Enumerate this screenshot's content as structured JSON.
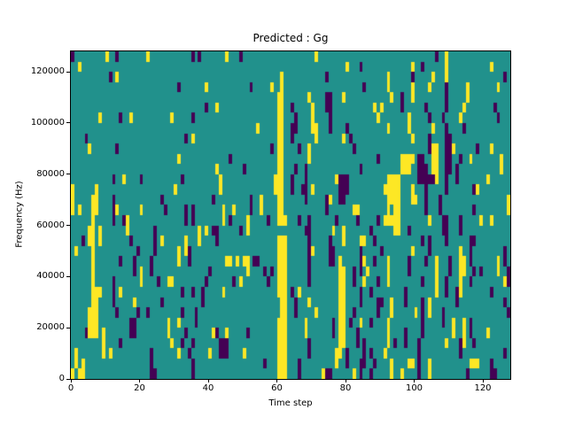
{
  "chart_data": {
    "type": "heatmap",
    "title": "Predicted : Gg",
    "xlabel": "Time step",
    "ylabel": "Frequency (Hz)",
    "x_range": [
      0,
      128
    ],
    "y_range": [
      0,
      128000
    ],
    "x_ticks": [
      0,
      20,
      40,
      60,
      80,
      100,
      120
    ],
    "y_ticks": [
      0,
      20000,
      40000,
      60000,
      80000,
      100000,
      120000
    ],
    "n_cols": 128,
    "n_rows": 32,
    "grid": "off",
    "legend": "none",
    "colormap": "viridis-3-level",
    "colors": {
      "mid_teal": "#21918c",
      "high_yellow": "#fde725",
      "low_purple": "#440154",
      "axes_background": "#ffffff",
      "text": "#000000"
    },
    "cell_freq_step_hz": 4000,
    "rows_top_to_bottom": [
      {
        "y": [
          10,
          22,
          45,
          71,
          109
        ],
        "p": [
          0,
          13,
          35,
          37,
          49,
          106
        ]
      },
      {
        "y": [
          2,
          80,
          99,
          109,
          122
        ],
        "p": [
          84,
          102
        ]
      },
      {
        "y": [
          13,
          61,
          92,
          105,
          109
        ],
        "p": [
          11,
          74,
          99,
          126
        ]
      },
      {
        "y": [
          39,
          58,
          61,
          92,
          99,
          104,
          115,
          124
        ],
        "p": [
          31,
          52,
          85,
          109
        ]
      },
      {
        "y": [
          60,
          61,
          69,
          79,
          93,
          99,
          115
        ],
        "p": [
          74,
          75,
          96,
          109
        ]
      },
      {
        "y": [
          42,
          60,
          61,
          70,
          88,
          90,
          114
        ],
        "p": [
          39,
          64,
          74,
          75,
          96,
          103,
          109,
          123
        ]
      },
      {
        "y": [
          8,
          17,
          29,
          60,
          61,
          70,
          89,
          98,
          113
        ],
        "p": [
          14,
          35,
          65,
          75,
          104,
          108,
          124
        ]
      },
      {
        "y": [
          54,
          60,
          61,
          70,
          71,
          92,
          98,
          105
        ],
        "p": [
          64,
          65,
          75,
          80,
          109,
          114
        ]
      },
      {
        "y": [
          35,
          60,
          61,
          71,
          79,
          99
        ],
        "p": [
          4,
          33,
          64,
          81,
          104,
          109,
          110
        ]
      },
      {
        "y": [
          5,
          60,
          61,
          69,
          105,
          106,
          111,
          122
        ],
        "p": [
          13,
          58,
          66,
          82,
          104,
          109,
          110,
          118
        ]
      },
      {
        "y": [
          31,
          60,
          61,
          69,
          96,
          97,
          98,
          99,
          105,
          106,
          116,
          125
        ],
        "p": [
          46,
          89,
          101,
          102,
          109,
          110,
          113
        ]
      },
      {
        "y": [
          42,
          60,
          61,
          96,
          97,
          98,
          105,
          106,
          125
        ],
        "p": [
          50,
          65,
          68,
          84,
          101,
          102,
          103,
          109,
          110,
          112
        ]
      },
      {
        "y": [
          15,
          43,
          59,
          60,
          61,
          77,
          92,
          93,
          94,
          95,
          106,
          121
        ],
        "p": [
          12,
          20,
          32,
          64,
          68,
          78,
          79,
          80,
          101,
          102,
          103,
          104,
          105,
          109,
          112
        ]
      },
      {
        "y": [
          0,
          7,
          30,
          43,
          59,
          60,
          61,
          70,
          91,
          92,
          93,
          94,
          95,
          99,
          118
        ],
        "p": [
          64,
          67,
          68,
          78,
          79,
          80,
          103,
          109,
          117
        ]
      },
      {
        "y": [
          0,
          6,
          7,
          55,
          60,
          61,
          75,
          92,
          93,
          94,
          95,
          99,
          100,
          127
        ],
        "p": [
          12,
          26,
          41,
          52,
          68,
          74,
          78,
          79,
          103,
          107
        ]
      },
      {
        "y": [
          0,
          2,
          6,
          7,
          13,
          20,
          44,
          47,
          55,
          60,
          61,
          82,
          83,
          92,
          94,
          95,
          127
        ],
        "p": [
          12,
          27,
          33,
          35,
          52,
          74,
          103,
          107,
          117
        ]
      },
      {
        "y": [
          6,
          16,
          44,
          51,
          60,
          61,
          62,
          91,
          92,
          93,
          94,
          95,
          104,
          119,
          122
        ],
        "p": [
          12,
          15,
          33,
          35,
          46,
          57,
          66,
          69,
          77,
          83,
          89,
          108,
          109,
          113
        ]
      },
      {
        "y": [
          5,
          6,
          8,
          16,
          37,
          39,
          51,
          76,
          79,
          94,
          95
        ],
        "p": [
          24,
          41,
          42,
          49,
          68,
          69,
          87,
          98,
          108,
          109,
          113
        ]
      },
      {
        "y": [
          5,
          6,
          8,
          26,
          33,
          37,
          60,
          61,
          62,
          79,
          84,
          85
        ],
        "p": [
          3,
          17,
          24,
          42,
          69,
          75,
          88,
          102,
          104,
          109,
          116,
          117
        ]
      },
      {
        "y": [
          1,
          6,
          31,
          33,
          60,
          61,
          62,
          70,
          99,
          113
        ],
        "p": [
          19,
          24,
          34,
          69,
          75,
          76,
          84,
          90,
          104,
          116,
          126
        ]
      },
      {
        "y": [
          6,
          31,
          45,
          46,
          48,
          50,
          51,
          60,
          61,
          62,
          78,
          85,
          92,
          106,
          113,
          114,
          124
        ],
        "p": [
          14,
          18,
          23,
          34,
          53,
          54,
          69,
          75,
          76,
          84,
          88,
          98,
          103,
          110,
          116,
          126
        ]
      },
      {
        "y": [
          6,
          20,
          51,
          60,
          61,
          62,
          78,
          79,
          86,
          92,
          106,
          113,
          114,
          124
        ],
        "p": [
          18,
          23,
          40,
          56,
          58,
          69,
          82,
          84,
          98,
          110,
          117,
          119,
          127
        ]
      },
      {
        "y": [
          6,
          20,
          28,
          29,
          49,
          60,
          61,
          62,
          78,
          79,
          85,
          92,
          106,
          113,
          126
        ],
        "p": [
          12,
          25,
          39,
          47,
          57,
          69,
          82,
          89,
          102,
          109,
          116,
          127
        ]
      },
      {
        "y": [
          6,
          7,
          8,
          14,
          44,
          60,
          61,
          62,
          66,
          78,
          79,
          106,
          113
        ],
        "p": [
          12,
          32,
          35,
          38,
          64,
          84,
          87,
          97,
          109,
          112,
          122
        ]
      },
      {
        "y": [
          6,
          7,
          18,
          61,
          62,
          69,
          78,
          79,
          93,
          104
        ],
        "p": [
          12,
          26,
          38,
          65,
          84,
          89,
          90,
          97,
          102,
          112,
          126
        ]
      },
      {
        "y": [
          5,
          6,
          7,
          61,
          62,
          71,
          78,
          79,
          93,
          100,
          104
        ],
        "p": [
          13,
          19,
          22,
          32,
          36,
          65,
          82,
          89,
          102,
          108,
          127
        ]
      },
      {
        "y": [
          5,
          6,
          7,
          28,
          31,
          60,
          61,
          62,
          68,
          78,
          79,
          84,
          92,
          111,
          114
        ],
        "p": [
          17,
          18,
          36,
          76,
          81,
          87,
          102,
          108,
          116
        ]
      },
      {
        "y": [
          5,
          6,
          7,
          9,
          28,
          41,
          45,
          60,
          61,
          62,
          68,
          78,
          79,
          92,
          111,
          114,
          121
        ],
        "p": [
          4,
          17,
          18,
          33,
          42,
          51,
          76,
          83,
          97,
          102,
          116
        ]
      },
      {
        "y": [
          9,
          29,
          60,
          61,
          62,
          78,
          79,
          92,
          109,
          114
        ],
        "p": [
          14,
          32,
          35,
          43,
          44,
          45,
          69,
          83,
          85,
          94,
          97,
          101,
          113,
          117
        ]
      },
      {
        "y": [
          1,
          9,
          11,
          31,
          40,
          50,
          60,
          61,
          62,
          77,
          78,
          91
        ],
        "p": [
          23,
          34,
          43,
          44,
          45,
          69,
          80,
          85,
          87,
          101,
          113,
          126
        ]
      },
      {
        "y": [
          1,
          3,
          60,
          61,
          62,
          77,
          93,
          98,
          99,
          104,
          116,
          117,
          118
        ],
        "p": [
          23,
          35,
          56,
          66,
          80,
          84,
          85,
          88,
          101,
          122
        ]
      },
      {
        "y": [
          0,
          2,
          3,
          60,
          61,
          62,
          73,
          82,
          93,
          96,
          104
        ],
        "p": [
          23,
          24,
          35,
          66,
          74,
          75,
          84,
          87,
          101,
          115,
          122,
          123
        ]
      }
    ]
  }
}
